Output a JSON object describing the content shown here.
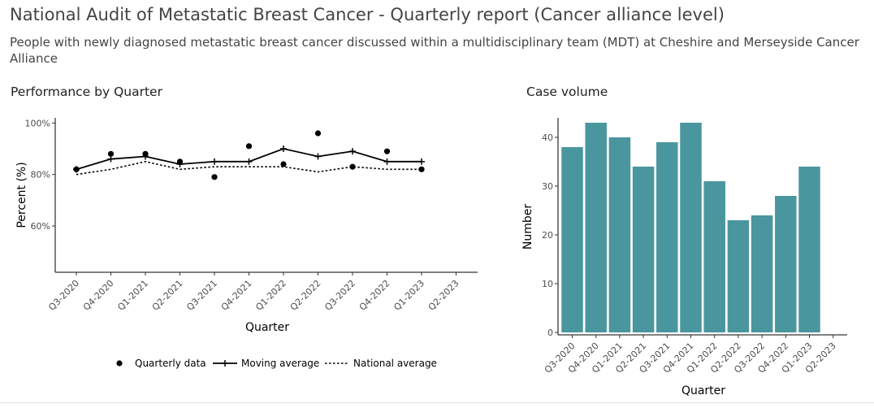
{
  "report": {
    "title": "National Audit of Metastatic Breast Cancer - Quarterly report (Cancer alliance level)",
    "subtitle": "People with newly diagnosed metastatic breast cancer discussed within a multidisciplinary team (MDT) at Cheshire and Merseyside Cancer Alliance"
  },
  "colors": {
    "bar": "#4a969e",
    "line": "#000000"
  },
  "chart_data": [
    {
      "type": "line",
      "title": "Performance by Quarter",
      "xlabel": "Quarter",
      "ylabel": "Percent (%)",
      "categories": [
        "Q3-2020",
        "Q4-2020",
        "Q1-2021",
        "Q2-2021",
        "Q3-2021",
        "Q4-2021",
        "Q1-2022",
        "Q2-2022",
        "Q3-2022",
        "Q4-2022",
        "Q1-2023",
        "Q2-2023"
      ],
      "ylim": [
        42,
        102
      ],
      "yticks": [
        60,
        80,
        100
      ],
      "ytick_labels": [
        "60%",
        "80%",
        "100%"
      ],
      "series": [
        {
          "name": "Quarterly data",
          "style": "points",
          "values": [
            82,
            88,
            88,
            85,
            79,
            91,
            84,
            96,
            83,
            89,
            82,
            null
          ]
        },
        {
          "name": "Moving average",
          "style": "solid-plus",
          "values": [
            82,
            86,
            87,
            84,
            85,
            85,
            90,
            87,
            89,
            85,
            85,
            null
          ]
        },
        {
          "name": "National average",
          "style": "dotted",
          "values": [
            80,
            82,
            85,
            82,
            83,
            83,
            83,
            81,
            83,
            82,
            82,
            null
          ]
        }
      ],
      "legend": [
        "Quarterly data",
        "Moving average",
        "National average"
      ],
      "legend_position": "bottom"
    },
    {
      "type": "bar",
      "title": "Case volume",
      "xlabel": "Quarter",
      "ylabel": "Number",
      "categories": [
        "Q3-2020",
        "Q4-2020",
        "Q1-2021",
        "Q2-2021",
        "Q3-2021",
        "Q4-2021",
        "Q1-2022",
        "Q2-2022",
        "Q3-2022",
        "Q4-2022",
        "Q1-2023",
        "Q2-2023"
      ],
      "values": [
        38,
        43,
        40,
        34,
        39,
        43,
        31,
        23,
        24,
        28,
        34,
        null
      ],
      "ylim": [
        -0.5,
        44
      ],
      "yticks": [
        0,
        10,
        20,
        30,
        40
      ],
      "ytick_labels": [
        "0",
        "10",
        "20",
        "30",
        "40"
      ]
    }
  ]
}
